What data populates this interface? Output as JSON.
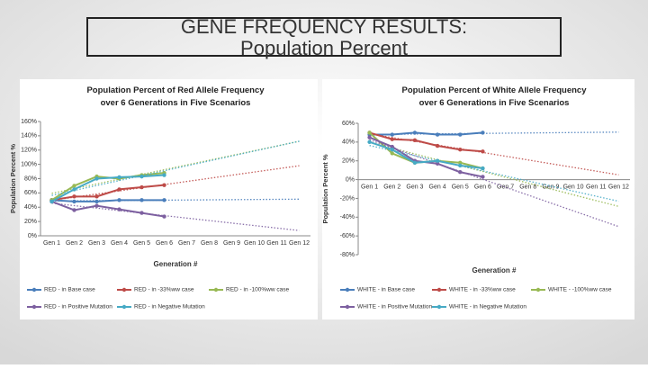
{
  "header": {
    "title": "GENE FREQUENCY RESULTS: Population Percent"
  },
  "chart_data": [
    {
      "type": "line",
      "title": "Population Percent of Red Allele Frequency over 6 Generations in Five Scenarios",
      "x_label": "Generation #",
      "y_label": "Population Percent %",
      "categories": [
        "Gen 1",
        "Gen 2",
        "Gen 3",
        "Gen 4",
        "Gen 5",
        "Gen 6",
        "Gen 7",
        "Gen 8",
        "Gen 9",
        "Gen 10",
        "Gen 11",
        "Gen 12"
      ],
      "ylim": [
        0,
        160
      ],
      "yticks": [
        {
          "value": 0,
          "label": "0%"
        },
        {
          "value": 20,
          "label": "20%"
        },
        {
          "value": 40,
          "label": "40%"
        },
        {
          "value": 60,
          "label": "60%"
        },
        {
          "value": 80,
          "label": "80%"
        },
        {
          "value": 100,
          "label": "100%"
        },
        {
          "value": 120,
          "label": "120%"
        },
        {
          "value": 140,
          "label": "140%"
        },
        {
          "value": 160,
          "label": "160%"
        }
      ],
      "trendlines": true,
      "series": [
        {
          "name": "RED - in Base case",
          "color": "#4a7ebb",
          "values": [
            50,
            48,
            48,
            50,
            50,
            50,
            null,
            null,
            null,
            null,
            null,
            null
          ]
        },
        {
          "name": "RED - in -33%ww case",
          "color": "#be4b48",
          "values": [
            50,
            55,
            55,
            65,
            68,
            71,
            null,
            null,
            null,
            null,
            null,
            null
          ]
        },
        {
          "name": "RED - in -100%ww case",
          "color": "#98b954",
          "values": [
            50,
            70,
            83,
            80,
            85,
            88,
            null,
            null,
            null,
            null,
            null,
            null
          ]
        },
        {
          "name": "RED - in Positive Mutation",
          "color": "#7d60a0",
          "values": [
            48,
            36,
            42,
            37,
            32,
            27,
            null,
            null,
            null,
            null,
            null,
            null
          ]
        },
        {
          "name": "RED - in Negative Mutation",
          "color": "#46aac5",
          "values": [
            48,
            65,
            80,
            82,
            83,
            85,
            null,
            null,
            null,
            null,
            null,
            null
          ]
        }
      ]
    },
    {
      "type": "line",
      "title": "Population Percent of White Allele Frequency over 6 Generations in Five Scenarios",
      "x_label": "Generation #",
      "y_label": "Population Percent %",
      "categories": [
        "Gen 1",
        "Gen 2",
        "Gen 3",
        "Gen 4",
        "Gen 5",
        "Gen 6",
        "Gen 7",
        "Gen 8",
        "Gen 9",
        "Gen 10",
        "Gen 11",
        "Gen 12"
      ],
      "ylim": [
        -80,
        60
      ],
      "yticks": [
        {
          "value": -80,
          "label": "-80%"
        },
        {
          "value": -60,
          "label": "-60%"
        },
        {
          "value": -40,
          "label": "-40%"
        },
        {
          "value": -20,
          "label": "-20%"
        },
        {
          "value": 0,
          "label": "0%"
        },
        {
          "value": 20,
          "label": "20%"
        },
        {
          "value": 40,
          "label": "40%"
        },
        {
          "value": 60,
          "label": "60%"
        }
      ],
      "trendlines": true,
      "series": [
        {
          "name": "WHITE - in Base case",
          "color": "#4a7ebb",
          "values": [
            48,
            48,
            50,
            48,
            48,
            50,
            null,
            null,
            null,
            null,
            null,
            null
          ]
        },
        {
          "name": "WHITE - in -33%ww case",
          "color": "#be4b48",
          "values": [
            50,
            43,
            42,
            36,
            32,
            30,
            null,
            null,
            null,
            null,
            null,
            null
          ]
        },
        {
          "name": "WHITE - -100%ww case",
          "color": "#98b954",
          "values": [
            50,
            28,
            18,
            20,
            18,
            12,
            null,
            null,
            null,
            null,
            null,
            null
          ]
        },
        {
          "name": "WHITE - in Positive Mutation",
          "color": "#7d60a0",
          "values": [
            45,
            35,
            20,
            17,
            8,
            3,
            null,
            null,
            null,
            null,
            null,
            null
          ]
        },
        {
          "name": "WHITE - in Negative Mutation",
          "color": "#46aac5",
          "values": [
            40,
            32,
            18,
            20,
            15,
            12,
            null,
            null,
            null,
            null,
            null,
            null
          ]
        }
      ]
    }
  ]
}
